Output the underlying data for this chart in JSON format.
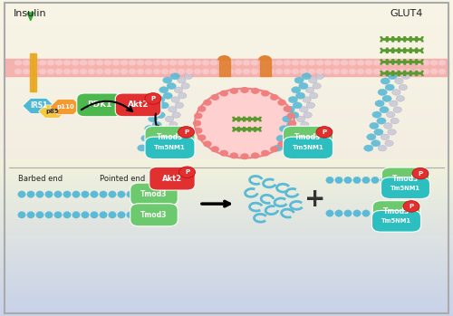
{
  "insulin_label": "Insulin",
  "glut4_label": "GLUT4",
  "barbed_end_label": "Barbed end",
  "pointed_end_label": "Pointed end",
  "colors": {
    "IRS1": "#4db8d4",
    "p85": "#f5c842",
    "p110": "#f59a30",
    "PDK1": "#4db84d",
    "Akt2": "#e03030",
    "Tmod3": "#6dc96d",
    "Tm5NM1": "#2dbfbf",
    "P_badge": "#e03030",
    "membrane": "#f5a8a8",
    "membrane_dot": "#f8c8c8",
    "actin_blue": "#5bbad5",
    "actin_white": "#c8c8d8",
    "actin_white_ec": "#aaaabc",
    "glut4_green": "#5a9a30",
    "vesicle_fill": "#ffd0d0",
    "vesicle_edge": "#f08080",
    "vesicle_dot": "#f08080",
    "orange_snare": "#e08030",
    "insulin_triangle": "#3aaa3a",
    "receptor_bar": "#e8a820",
    "arrow": "#111111",
    "border": "#aaaaaa",
    "text": "#222222"
  },
  "bg_gradient": [
    [
      0.0,
      [
        0.78,
        0.82,
        0.91
      ]
    ],
    [
      0.5,
      [
        0.95,
        0.95,
        0.88
      ]
    ],
    [
      1.0,
      [
        0.97,
        0.96,
        0.9
      ]
    ]
  ]
}
